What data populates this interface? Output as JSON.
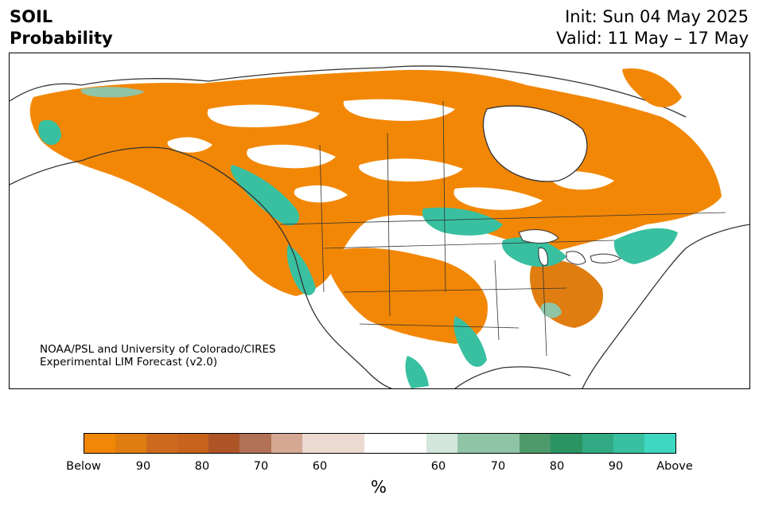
{
  "header": {
    "variable": "SOIL",
    "subtitle": "Probability",
    "init": "Init: Sun 04 May 2025",
    "valid": "Valid: 11 May – 17 May"
  },
  "map": {
    "credit_line1": "NOAA/PSL and University of Colorado/CIRES",
    "credit_line2": "Experimental LIM Forecast (v2.0)"
  },
  "legend": {
    "unit": "%",
    "ticks": [
      "Below",
      "90",
      "80",
      "70",
      "60",
      "60",
      "70",
      "80",
      "90",
      "Above"
    ],
    "colors": [
      "#f28705",
      "#e07d10",
      "#cd6a1e",
      "#c8631c",
      "#ae5528",
      "#b07157",
      "#d4a892",
      "#ecd9d0",
      "#ffffff",
      "#d2e6dc",
      "#8fc4a6",
      "#4f9a6a",
      "#2b9463",
      "#31aa83",
      "#38c0a0",
      "#3ed8c2"
    ],
    "colors_note_semantics": "below-normal (orange/brown) to above-normal (teal)"
  }
}
